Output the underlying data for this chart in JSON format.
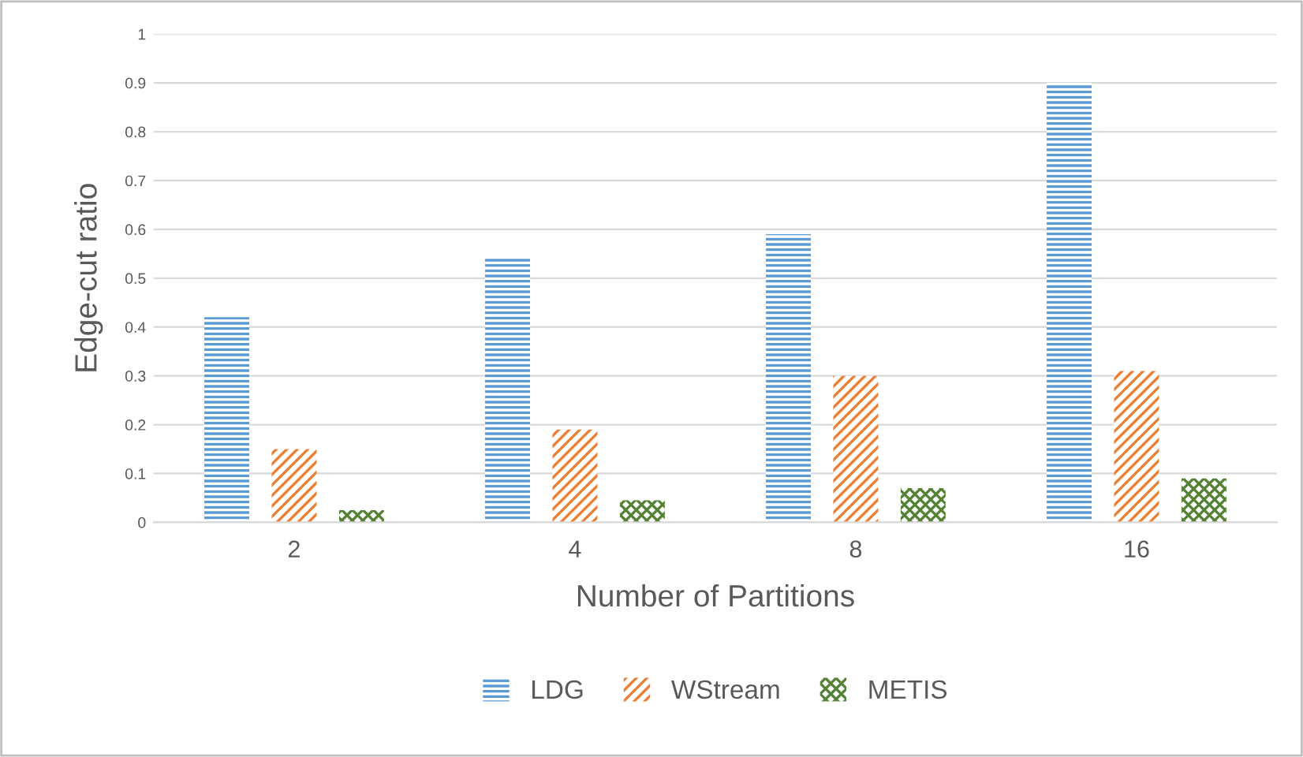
{
  "chart_data": {
    "type": "bar",
    "xlabel": "Number of Partitions",
    "ylabel": "Edge-cut ratio",
    "categories": [
      "2",
      "4",
      "8",
      "16"
    ],
    "series": [
      {
        "name": "LDG",
        "color": "#5b9bd5",
        "values": [
          0.42,
          0.54,
          0.59,
          0.9
        ]
      },
      {
        "name": "WStream",
        "color": "#ed7d31",
        "values": [
          0.15,
          0.19,
          0.3,
          0.31
        ]
      },
      {
        "name": "METIS",
        "color": "#548235",
        "values": [
          0.025,
          0.045,
          0.07,
          0.09
        ]
      }
    ],
    "ylim": [
      0,
      1
    ],
    "yticks": [
      0,
      0.1,
      0.2,
      0.3,
      0.4,
      0.5,
      0.6,
      0.7,
      0.8,
      0.9,
      1
    ],
    "grid": "y",
    "legend": "bottom"
  }
}
